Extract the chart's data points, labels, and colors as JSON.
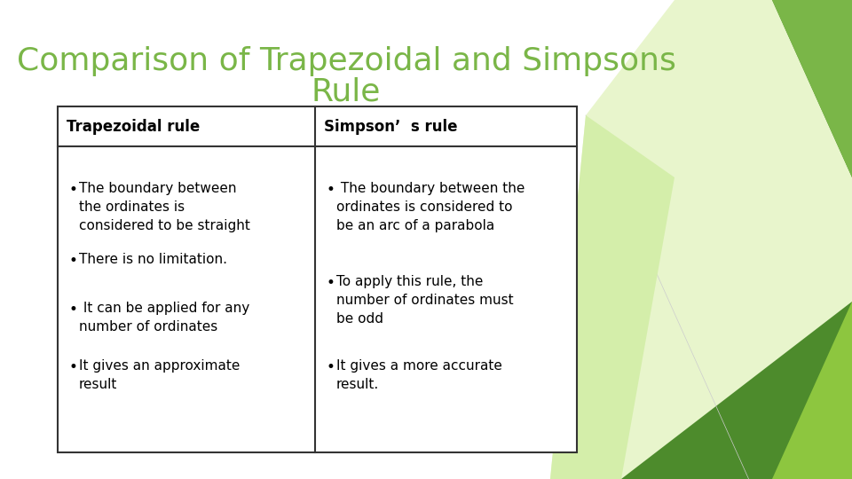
{
  "title_line1": "Comparison of Trapezoidal and Simpsons",
  "title_line2": "Rule",
  "title_color": "#7ab648",
  "background_color": "#ffffff",
  "col1_header": "Trapezoidal rule",
  "col2_header": "Simpson’  s rule",
  "col1_bullets": [
    "The boundary between\nthe ordinates is\nconsidered to be straight",
    "There is no limitation.",
    " It can be applied for any\nnumber of ordinates",
    "It gives an approximate\nresult"
  ],
  "col2_bullets": [
    " The boundary between the\nordinates is considered to\nbe an arc of a parabola",
    "To apply this rule, the\nnumber of ordinates must\nbe odd",
    "It gives a more accurate\nresult."
  ],
  "table_border_color": "#333333",
  "body_font_size": 11,
  "header_font_size": 12,
  "title_font_size": 26,
  "shape_colors": {
    "light_green_tri": "#d4eeaa",
    "mid_green": "#7ab648",
    "dark_green": "#4d8b2c",
    "bright_green": "#8dc63f",
    "very_light": "#e8f5cc"
  }
}
